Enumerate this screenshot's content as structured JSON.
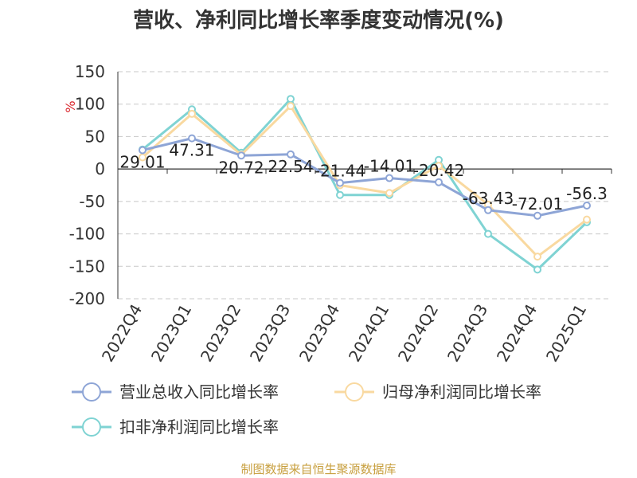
{
  "chart_data": {
    "type": "line",
    "title": "营收、净利同比增长率季度变动情况(%)",
    "ylabel": "%",
    "categories": [
      "2022Q4",
      "2023Q1",
      "2023Q2",
      "2023Q3",
      "2023Q4",
      "2024Q1",
      "2024Q2",
      "2024Q3",
      "2024Q4",
      "2025Q1"
    ],
    "ylim": [
      -200,
      150
    ],
    "yticks": [
      150,
      100,
      50,
      0,
      -50,
      -100,
      -150,
      -200
    ],
    "grid": true,
    "legend_position": "bottom-left",
    "series": [
      {
        "name": "营业总收入同比增长率",
        "color": "#8ea5d6",
        "values": [
          29.01,
          47.31,
          20.72,
          22.54,
          -21.44,
          -14.01,
          -20.42,
          -63.43,
          -72.01,
          -56.3
        ],
        "labels": [
          "29.01",
          "47.31",
          "20.72",
          "22.54",
          "-21.44",
          "-14.01",
          "-20.42",
          "-63.43",
          "-72.01",
          "-56.3"
        ]
      },
      {
        "name": "归母净利润同比增长率",
        "color": "#f9d9a0",
        "values": [
          18,
          85,
          22,
          97,
          -25,
          -37,
          5,
          -55,
          -135,
          -78
        ]
      },
      {
        "name": "扣非净利润同比增长率",
        "color": "#7fd3d3",
        "values": [
          30,
          92,
          25,
          108,
          -40,
          -40,
          14,
          -100,
          -155,
          -82
        ]
      }
    ],
    "source": "制图数据来自恒生聚源数据库"
  }
}
